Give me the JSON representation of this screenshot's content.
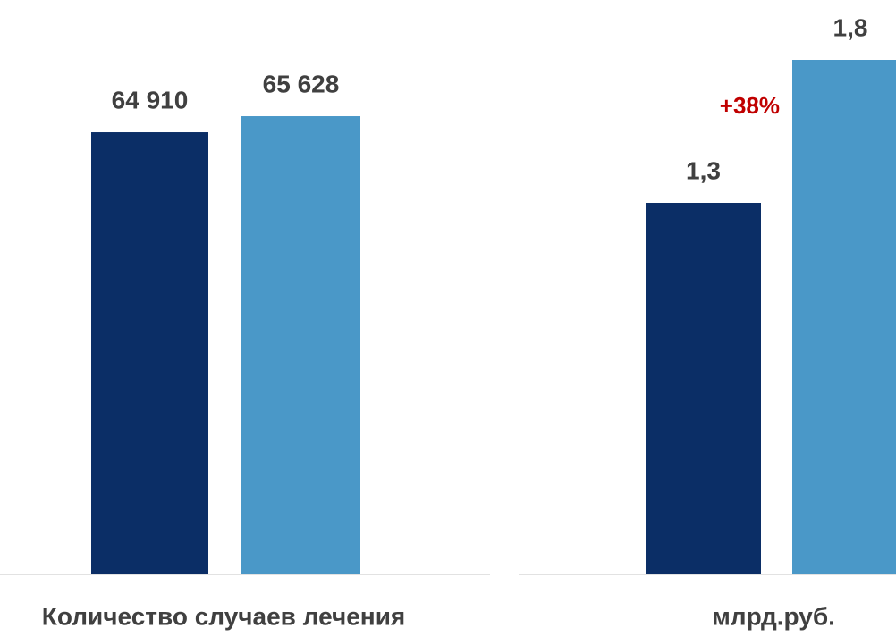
{
  "chart_data": [
    {
      "type": "bar",
      "x_label": "Количество случаев лечения",
      "categories": [
        null,
        null
      ],
      "values": [
        64910,
        65628
      ],
      "value_labels": [
        "64 910",
        "65 628"
      ],
      "colors": [
        "#0b2e66",
        "#4a98c8"
      ],
      "ylim": [
        45166,
        70695
      ]
    },
    {
      "type": "bar",
      "x_label": "млрд.руб.",
      "categories": [
        null,
        null
      ],
      "values": [
        1.3,
        1.8
      ],
      "value_labels": [
        "1,3",
        "1,8"
      ],
      "colors": [
        "#0b2e66",
        "#4a98c8"
      ],
      "ylim": [
        0,
        2
      ],
      "annotation": "+38%",
      "annotation_color": "#c00000"
    }
  ]
}
